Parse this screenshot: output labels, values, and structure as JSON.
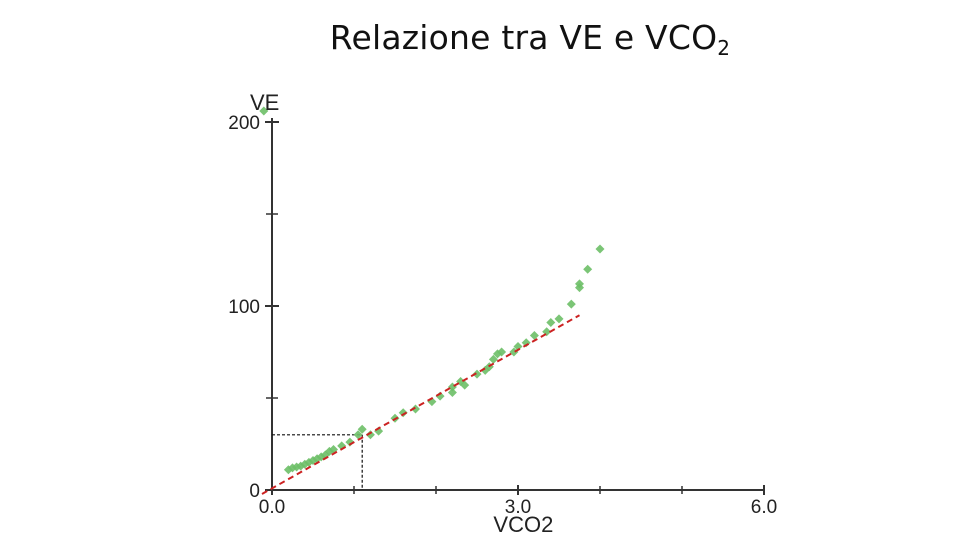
{
  "title": {
    "text": "Relazione tra VE e VCO",
    "subscript": "2"
  },
  "chart_data": {
    "type": "scatter",
    "xlabel": "VCO2",
    "ylabel": "VE",
    "xlim": [
      0,
      6
    ],
    "ylim": [
      0,
      200
    ],
    "x_tick_labels": [
      {
        "value": 0,
        "label": "0.0"
      },
      {
        "value": 3,
        "label": "3.0"
      },
      {
        "value": 6,
        "label": "6.0"
      }
    ],
    "y_tick_labels": [
      {
        "value": 0,
        "label": "0"
      },
      {
        "value": 100,
        "label": "100"
      },
      {
        "value": 200,
        "label": "200"
      }
    ],
    "x_minor_ticks": [
      1,
      2,
      4,
      5
    ],
    "y_minor_ticks": [
      50,
      150
    ],
    "grid": false,
    "point_color": "#6dbf67",
    "fit_line_color": "#cc2222",
    "series": [
      {
        "points": [
          [
            0.2,
            11
          ],
          [
            0.25,
            12
          ],
          [
            0.3,
            12.5
          ],
          [
            0.35,
            13
          ],
          [
            0.4,
            14
          ],
          [
            0.45,
            15
          ],
          [
            0.5,
            16
          ],
          [
            0.55,
            17
          ],
          [
            0.6,
            18
          ],
          [
            0.65,
            19
          ],
          [
            0.7,
            21
          ],
          [
            0.75,
            22
          ],
          [
            0.85,
            24
          ],
          [
            0.95,
            26
          ],
          [
            1.05,
            30
          ],
          [
            1.1,
            33
          ],
          [
            1.2,
            30
          ],
          [
            1.3,
            32
          ],
          [
            1.5,
            39
          ],
          [
            1.6,
            42
          ],
          [
            1.75,
            44
          ],
          [
            1.95,
            48
          ],
          [
            2.05,
            51
          ],
          [
            2.2,
            53
          ],
          [
            2.2,
            56
          ],
          [
            2.3,
            59
          ],
          [
            2.35,
            57
          ],
          [
            2.5,
            63
          ],
          [
            2.6,
            65
          ],
          [
            2.65,
            67
          ],
          [
            2.7,
            71
          ],
          [
            2.75,
            74
          ],
          [
            2.8,
            75
          ],
          [
            2.95,
            75
          ],
          [
            3.0,
            78
          ],
          [
            3.1,
            80
          ],
          [
            3.2,
            84
          ],
          [
            3.35,
            86
          ],
          [
            3.4,
            91
          ],
          [
            3.5,
            93
          ],
          [
            3.65,
            101
          ],
          [
            3.75,
            110
          ],
          [
            3.75,
            112
          ],
          [
            3.85,
            120
          ],
          [
            4.0,
            131
          ],
          [
            -0.1,
            206
          ]
        ]
      }
    ],
    "fit_line": {
      "x": [
        0.0,
        3.75
      ],
      "y": [
        0.0,
        95.0
      ]
    },
    "reference_lines": {
      "x": 1.1,
      "y": 30
    }
  }
}
